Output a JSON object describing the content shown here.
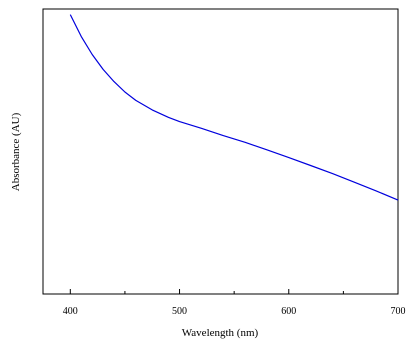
{
  "chart_data": {
    "type": "line",
    "title": "",
    "xlabel": "Wavelength (nm)",
    "ylabel": "Absorbance (AU)",
    "xlim": [
      375,
      700
    ],
    "x_ticks": [
      400,
      500,
      600,
      700
    ],
    "x_tick_labels": [
      "400",
      "500",
      "600",
      "700"
    ],
    "y_ticks_shown": false,
    "grid": false,
    "legend": "none",
    "series": [
      {
        "color": "#0000dd",
        "x": [
          400,
          410,
          420,
          430,
          440,
          450,
          460,
          475,
          490,
          500,
          520,
          540,
          560,
          580,
          600,
          620,
          640,
          660,
          680,
          700
        ],
        "y": [
          1.0,
          0.922,
          0.857,
          0.804,
          0.76,
          0.723,
          0.693,
          0.659,
          0.632,
          0.617,
          0.593,
          0.567,
          0.543,
          0.516,
          0.488,
          0.46,
          0.431,
          0.4,
          0.369,
          0.336
        ]
      }
    ]
  }
}
